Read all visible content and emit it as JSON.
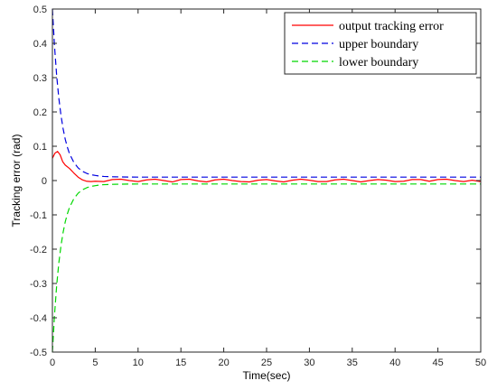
{
  "chart_data": {
    "type": "line",
    "title": "",
    "xlabel": "Time(sec)",
    "ylabel": "Tracking error (rad)",
    "xlim": [
      0,
      50
    ],
    "ylim": [
      -0.5,
      0.5
    ],
    "xticks": [
      0,
      5,
      10,
      15,
      20,
      25,
      30,
      35,
      40,
      45,
      50
    ],
    "yticks": [
      -0.5,
      -0.4,
      -0.3,
      -0.2,
      -0.1,
      0,
      0.1,
      0.2,
      0.3,
      0.4,
      0.5
    ],
    "xtick_labels": [
      "0",
      "5",
      "10",
      "15",
      "20",
      "25",
      "30",
      "35",
      "40",
      "45",
      "50"
    ],
    "ytick_labels": [
      "-0.5",
      "-0.4",
      "-0.3",
      "-0.2",
      "-0.1",
      "0",
      "0.1",
      "0.2",
      "0.3",
      "0.4",
      "0.5"
    ],
    "grid": false,
    "legend_position": "top-right",
    "series": [
      {
        "name": "output tracking error",
        "color": "#ff0000",
        "style": "solid",
        "x": [
          0,
          0.3,
          0.6,
          0.9,
          1.2,
          1.5,
          2.0,
          2.5,
          3.0,
          3.5,
          4.0,
          4.5,
          5.0,
          6,
          7,
          8,
          9,
          10,
          11,
          12,
          13,
          14,
          15,
          16,
          17,
          18,
          19,
          20,
          21,
          22,
          23,
          24,
          25,
          26,
          27,
          28,
          29,
          30,
          31,
          32,
          33,
          34,
          35,
          36,
          37,
          38,
          39,
          40,
          41,
          42,
          43,
          44,
          45,
          46,
          47,
          48,
          49,
          50
        ],
        "y": [
          0.065,
          0.08,
          0.085,
          0.075,
          0.055,
          0.045,
          0.035,
          0.022,
          0.01,
          0.002,
          -0.002,
          -0.003,
          -0.002,
          -0.003,
          0.003,
          0.004,
          0.0,
          -0.003,
          0.002,
          0.004,
          0.0,
          -0.004,
          0.003,
          0.004,
          -0.001,
          -0.004,
          0.002,
          0.004,
          0.0,
          -0.003,
          -0.004,
          0.001,
          0.003,
          -0.001,
          -0.004,
          0.001,
          0.004,
          0.001,
          -0.003,
          -0.003,
          0.002,
          0.004,
          0.0,
          -0.004,
          0.0,
          0.003,
          0.001,
          -0.003,
          -0.002,
          0.003,
          0.003,
          -0.002,
          0.003,
          0.004,
          0.0,
          -0.003,
          0.001,
          -0.003
        ]
      },
      {
        "name": "upper boundary",
        "color": "#0000e0",
        "style": "dashed",
        "x": [
          0,
          0.25,
          0.5,
          0.75,
          1.0,
          1.25,
          1.5,
          1.75,
          2.0,
          2.5,
          3.0,
          3.5,
          4.0,
          4.5,
          5.0,
          5.5,
          6,
          7,
          8,
          10,
          15,
          20,
          25,
          30,
          35,
          40,
          45,
          50
        ],
        "y": [
          0.5,
          0.39,
          0.305,
          0.24,
          0.19,
          0.151,
          0.12,
          0.097,
          0.078,
          0.053,
          0.037,
          0.027,
          0.021,
          0.017,
          0.015,
          0.013,
          0.012,
          0.011,
          0.0105,
          0.01,
          0.01,
          0.01,
          0.01,
          0.01,
          0.01,
          0.01,
          0.01,
          0.01
        ]
      },
      {
        "name": "lower boundary",
        "color": "#00d800",
        "style": "dashed",
        "x": [
          0,
          0.25,
          0.5,
          0.75,
          1.0,
          1.25,
          1.5,
          1.75,
          2.0,
          2.5,
          3.0,
          3.5,
          4.0,
          4.5,
          5.0,
          5.5,
          6,
          7,
          8,
          10,
          15,
          20,
          25,
          30,
          35,
          40,
          45,
          50
        ],
        "y": [
          -0.5,
          -0.39,
          -0.305,
          -0.24,
          -0.19,
          -0.151,
          -0.12,
          -0.097,
          -0.078,
          -0.053,
          -0.037,
          -0.027,
          -0.021,
          -0.017,
          -0.015,
          -0.013,
          -0.012,
          -0.011,
          -0.0105,
          -0.01,
          -0.01,
          -0.01,
          -0.01,
          -0.01,
          -0.01,
          -0.01,
          -0.01,
          -0.01
        ]
      }
    ]
  }
}
